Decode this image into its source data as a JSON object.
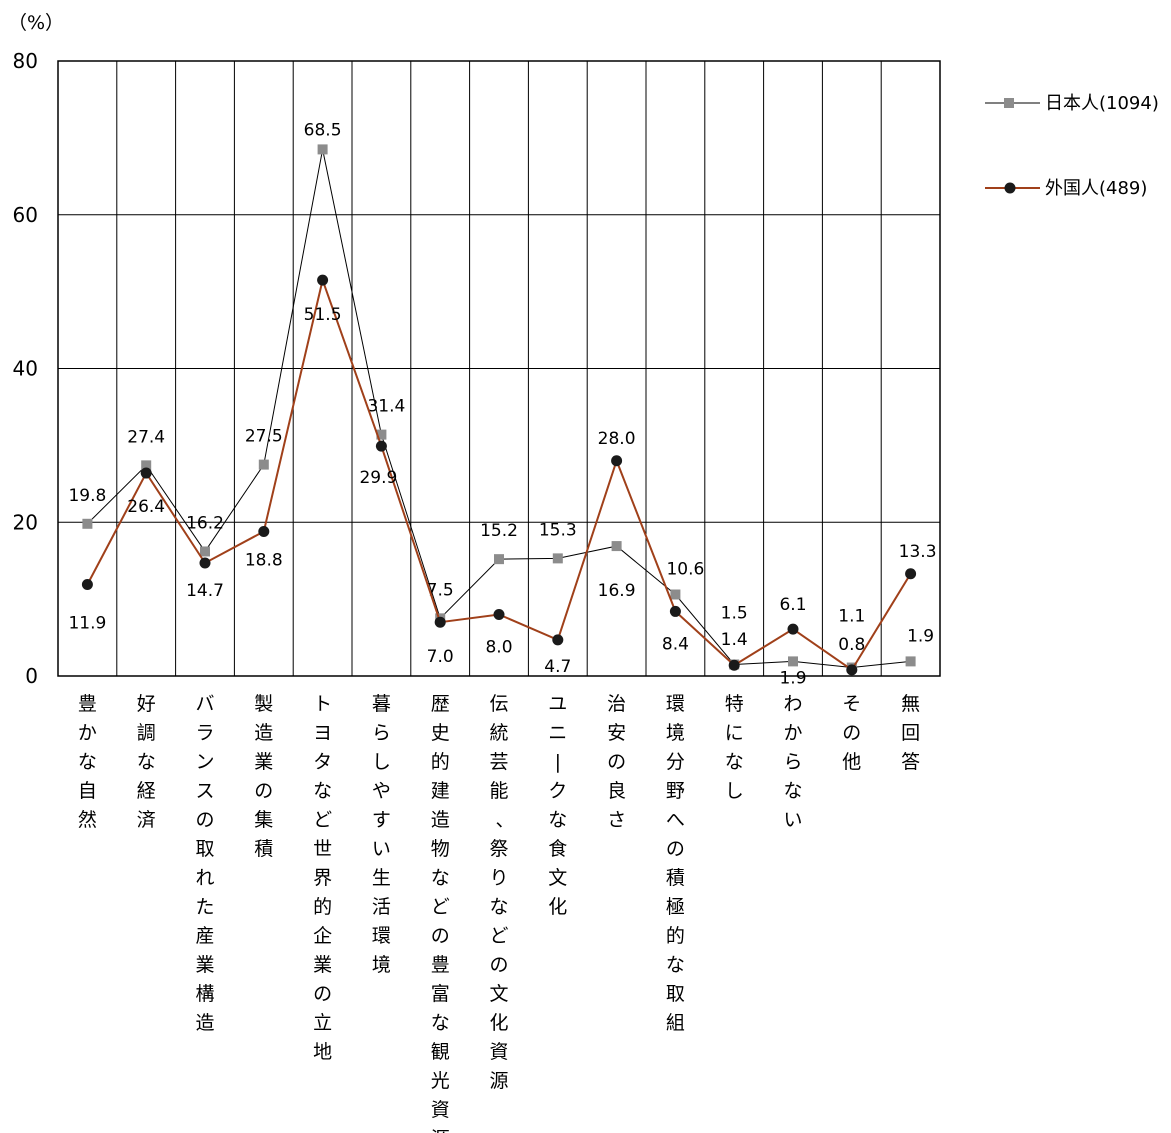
{
  "chart_data": {
    "type": "line",
    "unit_label": "（%）",
    "ylim": [
      0,
      80
    ],
    "yticks": [
      "0",
      "20",
      "40",
      "60",
      "80"
    ],
    "grid": true,
    "legend_position": "top-right",
    "categories": [
      "豊かな自然",
      "好調な経済",
      "バランスの取れた産業構造",
      "製造業の集積",
      "トヨタなど世界的企業の立地",
      "暮らしやすい生活環境",
      "歴史的建造物などの豊富な観光資源",
      "伝統芸能、祭りなどの文化資源",
      "ユニークな食文化",
      "治安の良さ",
      "環境分野への積極的な取組",
      "特になし",
      "わからない",
      "その他",
      "無回答"
    ],
    "series": [
      {
        "name": "日本人(1094)",
        "color": "#000000",
        "marker": "square",
        "marker_color": "#8c8c8c",
        "values": [
          19.8,
          27.4,
          16.2,
          27.5,
          68.5,
          31.4,
          7.5,
          15.2,
          15.3,
          16.9,
          10.6,
          1.5,
          1.9,
          1.1,
          1.9
        ],
        "labels": [
          "19.8",
          "27.4",
          "16.2",
          "27.5",
          "68.5",
          "31.4",
          "7.5",
          "15.2",
          "15.3",
          "16.9",
          "10.6",
          "1.5",
          "1.9",
          "1.1",
          "1.9"
        ]
      },
      {
        "name": "外国人(489)",
        "color": "#a0401a",
        "marker": "circle",
        "marker_color": "#1a1a1a",
        "values": [
          11.9,
          26.4,
          14.7,
          18.8,
          51.5,
          29.9,
          7.0,
          8.0,
          4.7,
          28.0,
          8.4,
          1.4,
          6.1,
          0.8,
          13.3
        ],
        "labels": [
          "11.9",
          "26.4",
          "14.7",
          "18.8",
          "51.5",
          "29.9",
          "7.0",
          "8.0",
          "4.7",
          "28.0",
          "8.4",
          "1.4",
          "6.1",
          "0.8",
          "13.3"
        ]
      }
    ]
  }
}
